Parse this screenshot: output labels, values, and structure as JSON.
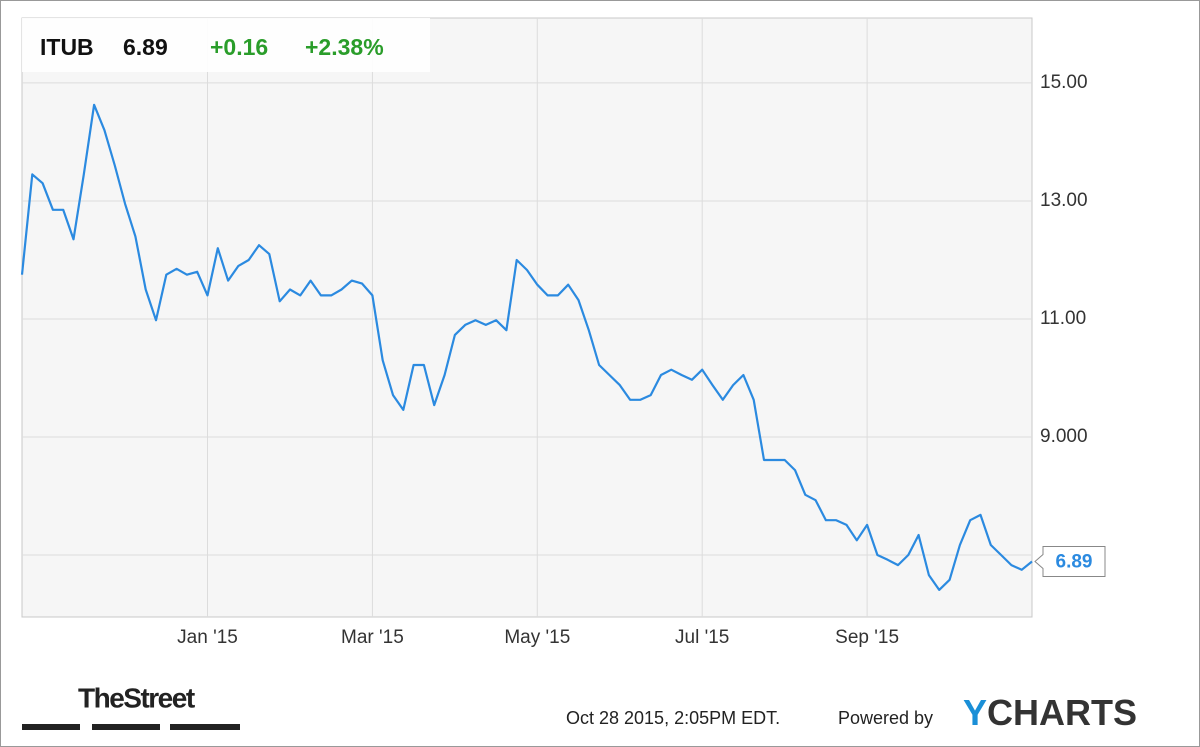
{
  "header": {
    "symbol": "ITUB",
    "price": "6.89",
    "change": "+0.16",
    "change_pct": "+2.38%"
  },
  "chart_data": {
    "type": "line",
    "categories": [
      null,
      null,
      null,
      null,
      null,
      null,
      null,
      null,
      null,
      null,
      null,
      null,
      null,
      null,
      null,
      null,
      null,
      null,
      "Jan '15",
      null,
      null,
      null,
      null,
      null,
      null,
      null,
      null,
      null,
      null,
      null,
      null,
      null,
      null,
      null,
      "Mar '15",
      null,
      null,
      null,
      null,
      null,
      null,
      null,
      null,
      null,
      null,
      null,
      null,
      null,
      null,
      null,
      "May '15",
      null,
      null,
      null,
      null,
      null,
      null,
      null,
      null,
      null,
      null,
      null,
      null,
      null,
      null,
      null,
      "Jul '15",
      null,
      null,
      null,
      null,
      null,
      null,
      null,
      null,
      null,
      null,
      null,
      null,
      null,
      null,
      null,
      "Sep '15",
      null,
      null,
      null,
      null,
      null,
      null,
      null,
      null,
      null,
      null,
      null,
      null,
      null,
      null,
      null,
      null
    ],
    "series": [
      {
        "name": "ITUB",
        "color": "#2b8ae0",
        "values": [
          11.75,
          13.45,
          13.3,
          12.85,
          12.85,
          12.35,
          13.45,
          14.63,
          14.2,
          13.6,
          12.95,
          12.4,
          11.5,
          10.98,
          11.75,
          11.85,
          11.75,
          11.8,
          11.4,
          12.2,
          11.65,
          11.9,
          12.0,
          12.25,
          12.1,
          11.3,
          11.5,
          11.4,
          11.65,
          11.4,
          11.4,
          11.5,
          11.65,
          11.6,
          11.4,
          10.3,
          9.71,
          9.46,
          10.22,
          10.22,
          9.54,
          10.05,
          10.73,
          10.9,
          10.98,
          10.9,
          10.98,
          10.81,
          12.0,
          11.83,
          11.58,
          11.4,
          11.4,
          11.58,
          11.32,
          10.81,
          10.22,
          10.05,
          9.88,
          9.63,
          9.63,
          9.71,
          10.05,
          10.14,
          10.05,
          9.97,
          10.14,
          9.88,
          9.63,
          9.88,
          10.05,
          9.63,
          8.61,
          8.61,
          8.61,
          8.44,
          8.02,
          7.93,
          7.59,
          7.59,
          7.51,
          7.25,
          7.51,
          7.0,
          6.92,
          6.83,
          7.0,
          7.34,
          6.66,
          6.41,
          6.58,
          7.17,
          7.59,
          7.68,
          7.17,
          7.0,
          6.83,
          6.75,
          6.89
        ]
      }
    ],
    "ylim": [
      5.95,
      16.1
    ],
    "yticks": [
      {
        "value": 7,
        "label": null
      },
      {
        "value": 9,
        "label": "9.000"
      },
      {
        "value": 11,
        "label": "11.00"
      },
      {
        "value": 13,
        "label": "13.00"
      },
      {
        "value": 15,
        "label": "15.00"
      }
    ],
    "grid": true
  },
  "footer": {
    "brand": "TheStreet",
    "timestamp": "Oct 28 2015, 2:05PM EDT.",
    "powered": "Powered by",
    "logo_y": "Y",
    "logo_rest": "CHARTS"
  }
}
